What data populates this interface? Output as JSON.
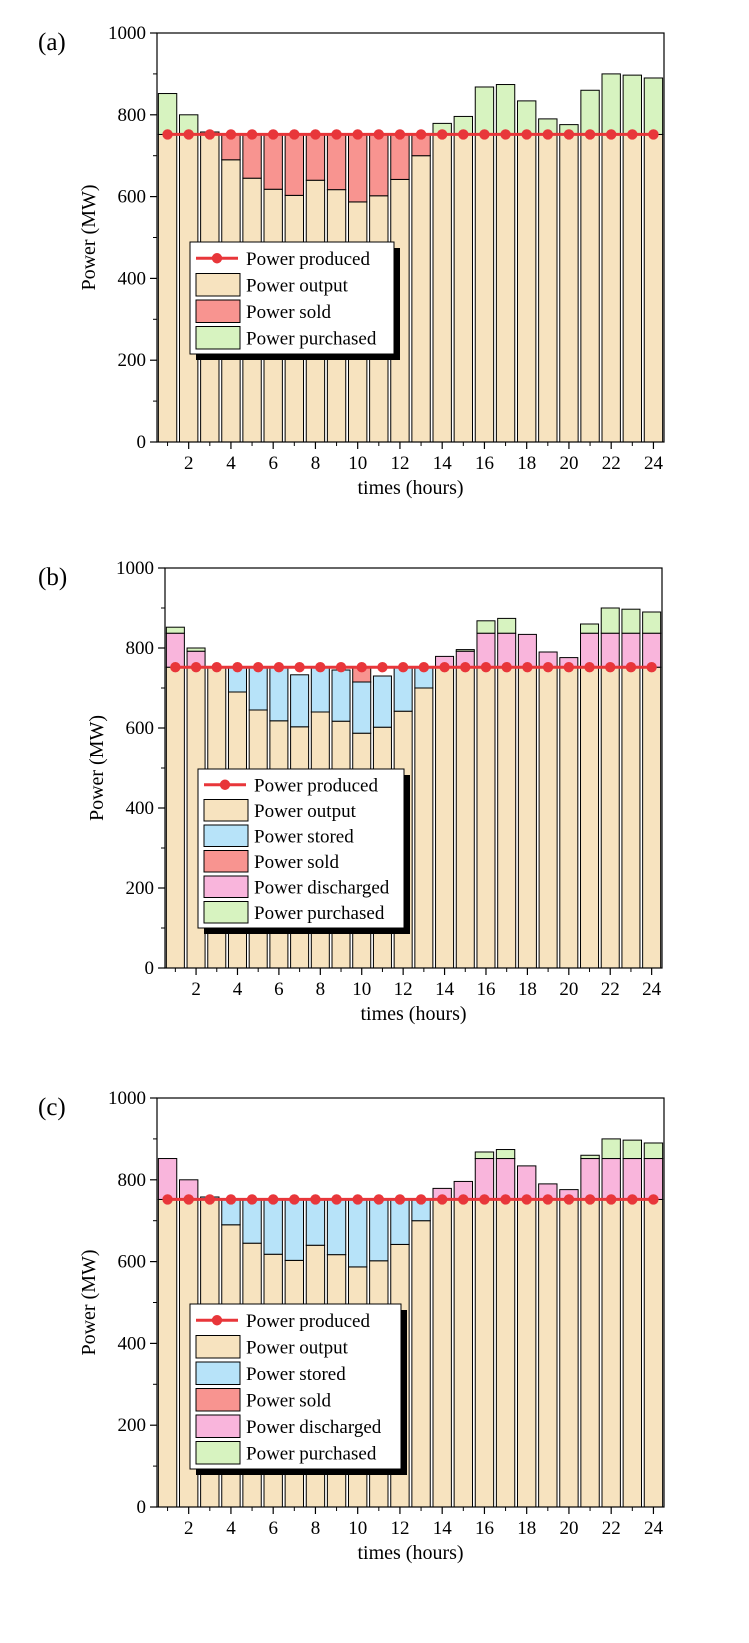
{
  "colors": {
    "output": "#f7e3bf",
    "sold": "#f89490",
    "purchased": "#d7f3c0",
    "stored": "#b7e3f9",
    "discharged": "#f9b5dc",
    "produced": "#e8363a"
  },
  "chart_data": [
    {
      "type": "bar",
      "stacked": true,
      "panel_label": "(a)",
      "xlabel": "times (hours)",
      "ylabel": "Power (MW)",
      "ylim": [
        0,
        1000
      ],
      "yticks": [
        "0",
        "200",
        "400",
        "600",
        "800",
        "1000"
      ],
      "xticks": [
        "2",
        "4",
        "6",
        "8",
        "10",
        "12",
        "14",
        "16",
        "18",
        "20",
        "22",
        "24"
      ],
      "hours": [
        1,
        2,
        3,
        4,
        5,
        6,
        7,
        8,
        9,
        10,
        11,
        12,
        13,
        14,
        15,
        16,
        17,
        18,
        19,
        20,
        21,
        22,
        23,
        24
      ],
      "produced": 752,
      "legend": [
        {
          "key": "produced",
          "label": "Power produced"
        },
        {
          "key": "output",
          "label": "Power output"
        },
        {
          "key": "sold",
          "label": "Power sold"
        },
        {
          "key": "purchased",
          "label": "Power purchased"
        }
      ],
      "series": [
        {
          "key": "output",
          "name": "Power output",
          "values": [
            752,
            752,
            752,
            690,
            645,
            618,
            603,
            640,
            617,
            587,
            602,
            642,
            700,
            752,
            752,
            752,
            752,
            752,
            752,
            752,
            752,
            752,
            752,
            752
          ]
        },
        {
          "key": "sold",
          "name": "Power sold",
          "values": [
            0,
            0,
            6,
            62,
            107,
            134,
            149,
            112,
            135,
            165,
            150,
            110,
            52,
            0,
            0,
            0,
            0,
            0,
            0,
            0,
            0,
            0,
            0,
            0
          ]
        },
        {
          "key": "purchased",
          "name": "Power purchased",
          "values": [
            100,
            48,
            0,
            0,
            0,
            0,
            0,
            0,
            0,
            0,
            0,
            0,
            0,
            27,
            44,
            116,
            122,
            82,
            38,
            24,
            108,
            148,
            145,
            138
          ]
        }
      ]
    },
    {
      "type": "bar",
      "stacked": true,
      "panel_label": "(b)",
      "xlabel": "times (hours)",
      "ylabel": "Power (MW)",
      "ylim": [
        0,
        1000
      ],
      "yticks": [
        "0",
        "200",
        "400",
        "600",
        "800",
        "1000"
      ],
      "xticks": [
        "2",
        "4",
        "6",
        "8",
        "10",
        "12",
        "14",
        "16",
        "18",
        "20",
        "22",
        "24"
      ],
      "hours": [
        1,
        2,
        3,
        4,
        5,
        6,
        7,
        8,
        9,
        10,
        11,
        12,
        13,
        14,
        15,
        16,
        17,
        18,
        19,
        20,
        21,
        22,
        23,
        24
      ],
      "produced": 752,
      "legend": [
        {
          "key": "produced",
          "label": "Power produced"
        },
        {
          "key": "output",
          "label": "Power output"
        },
        {
          "key": "stored",
          "label": "Power stored"
        },
        {
          "key": "sold",
          "label": "Power sold"
        },
        {
          "key": "discharged",
          "label": "Power discharged"
        },
        {
          "key": "purchased",
          "label": "Power purchased"
        }
      ],
      "series": [
        {
          "key": "output",
          "name": "Power output",
          "values": [
            752,
            752,
            752,
            690,
            645,
            618,
            603,
            640,
            617,
            587,
            602,
            642,
            700,
            752,
            752,
            752,
            752,
            752,
            752,
            752,
            752,
            752,
            752,
            752
          ]
        },
        {
          "key": "stored",
          "name": "Power stored",
          "values": [
            0,
            0,
            0,
            62,
            107,
            134,
            130,
            112,
            128,
            128,
            128,
            110,
            52,
            0,
            0,
            0,
            0,
            0,
            0,
            0,
            0,
            0,
            0,
            0
          ]
        },
        {
          "key": "sold",
          "name": "Power sold",
          "values": [
            0,
            0,
            0,
            0,
            0,
            0,
            0,
            0,
            0,
            37,
            0,
            0,
            0,
            0,
            0,
            0,
            0,
            0,
            0,
            0,
            0,
            0,
            0,
            0
          ]
        },
        {
          "key": "discharged",
          "name": "Power discharged",
          "values": [
            85,
            40,
            0,
            0,
            0,
            0,
            0,
            0,
            0,
            0,
            0,
            0,
            0,
            27,
            40,
            85,
            85,
            82,
            38,
            24,
            85,
            85,
            85,
            85
          ]
        },
        {
          "key": "purchased",
          "name": "Power purchased",
          "values": [
            15,
            8,
            0,
            0,
            0,
            0,
            0,
            0,
            0,
            0,
            0,
            0,
            0,
            0,
            4,
            31,
            37,
            0,
            0,
            0,
            23,
            63,
            60,
            53
          ]
        }
      ]
    },
    {
      "type": "bar",
      "stacked": true,
      "panel_label": "(c)",
      "xlabel": "times (hours)",
      "ylabel": "Power (MW)",
      "ylim": [
        0,
        1000
      ],
      "yticks": [
        "0",
        "200",
        "400",
        "600",
        "800",
        "1000"
      ],
      "xticks": [
        "2",
        "4",
        "6",
        "8",
        "10",
        "12",
        "14",
        "16",
        "18",
        "20",
        "22",
        "24"
      ],
      "hours": [
        1,
        2,
        3,
        4,
        5,
        6,
        7,
        8,
        9,
        10,
        11,
        12,
        13,
        14,
        15,
        16,
        17,
        18,
        19,
        20,
        21,
        22,
        23,
        24
      ],
      "produced": 752,
      "legend": [
        {
          "key": "produced",
          "label": "Power produced"
        },
        {
          "key": "output",
          "label": "Power output"
        },
        {
          "key": "stored",
          "label": "Power stored"
        },
        {
          "key": "sold",
          "label": "Power sold"
        },
        {
          "key": "discharged",
          "label": "Power discharged"
        },
        {
          "key": "purchased",
          "label": "Power purchased"
        }
      ],
      "series": [
        {
          "key": "output",
          "name": "Power output",
          "values": [
            752,
            752,
            752,
            690,
            645,
            618,
            603,
            640,
            617,
            587,
            602,
            642,
            700,
            752,
            752,
            752,
            752,
            752,
            752,
            752,
            752,
            752,
            752,
            752
          ]
        },
        {
          "key": "stored",
          "name": "Power stored",
          "values": [
            0,
            0,
            6,
            62,
            107,
            134,
            149,
            112,
            135,
            165,
            150,
            110,
            52,
            0,
            0,
            0,
            0,
            0,
            0,
            0,
            0,
            0,
            0,
            0
          ]
        },
        {
          "key": "sold",
          "name": "Power sold",
          "values": [
            0,
            0,
            0,
            0,
            0,
            0,
            0,
            0,
            0,
            0,
            0,
            0,
            0,
            0,
            0,
            0,
            0,
            0,
            0,
            0,
            0,
            0,
            0,
            0
          ]
        },
        {
          "key": "discharged",
          "name": "Power discharged",
          "values": [
            100,
            48,
            0,
            0,
            0,
            0,
            0,
            0,
            0,
            0,
            0,
            0,
            0,
            27,
            44,
            100,
            100,
            82,
            38,
            24,
            100,
            100,
            100,
            100
          ]
        },
        {
          "key": "purchased",
          "name": "Power purchased",
          "values": [
            0,
            0,
            0,
            0,
            0,
            0,
            0,
            0,
            0,
            0,
            0,
            0,
            0,
            0,
            0,
            16,
            22,
            0,
            0,
            0,
            8,
            48,
            45,
            38
          ]
        }
      ]
    }
  ]
}
